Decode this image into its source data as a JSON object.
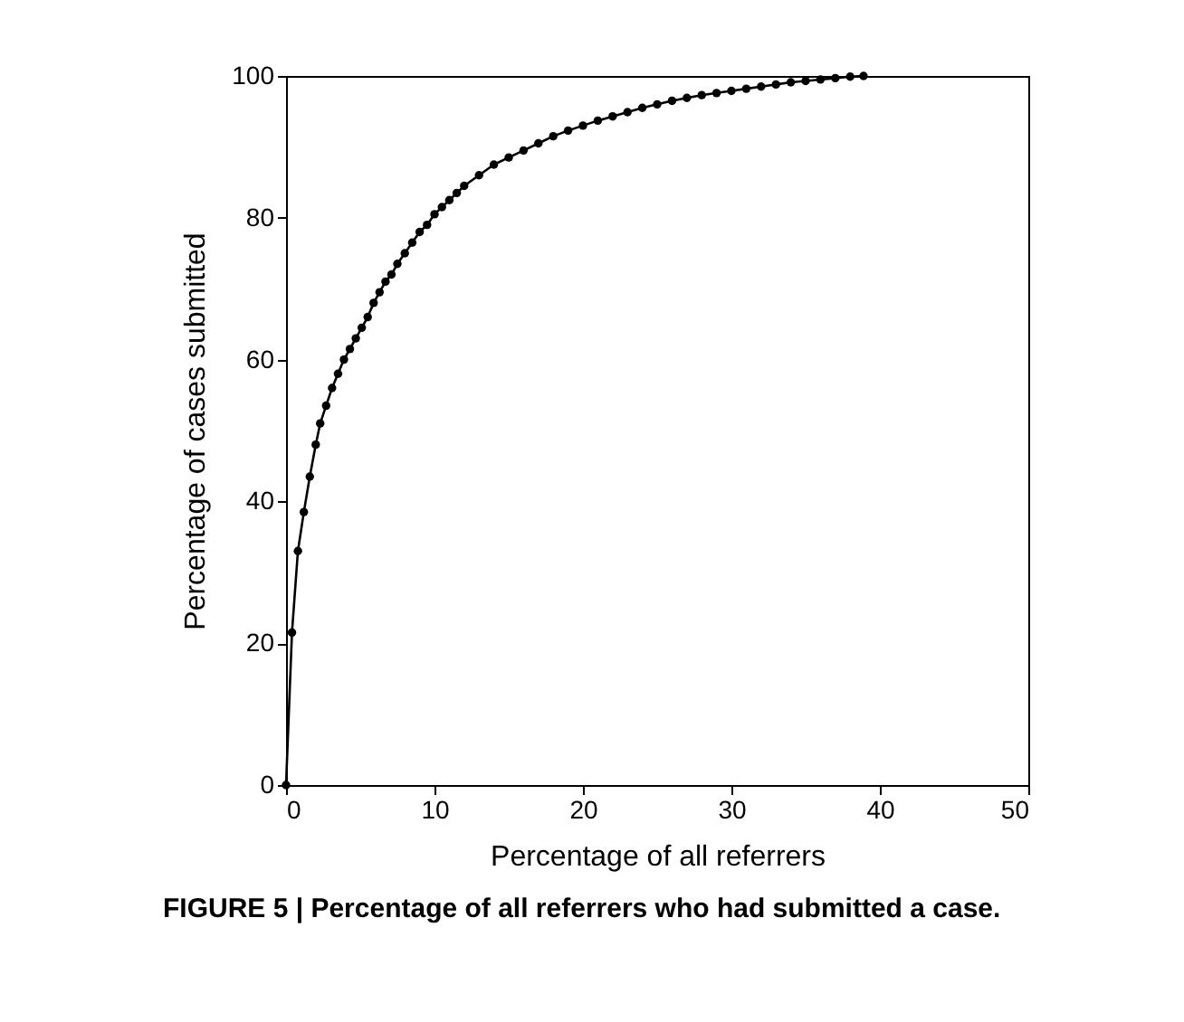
{
  "chart_data": {
    "type": "line",
    "xlabel": "Percentage of all referrers",
    "ylabel": "Percentage of cases submitted",
    "annotations": [
      "FIGURE 5 | Percentage of all referrers who had submitted a case."
    ],
    "x": [
      0,
      0.4,
      0.8,
      1.2,
      1.6,
      2.0,
      2.3,
      2.7,
      3.1,
      3.5,
      3.9,
      4.3,
      4.7,
      5.1,
      5.5,
      5.9,
      6.3,
      6.7,
      7.1,
      7.5,
      8.0,
      8.5,
      9.0,
      9.5,
      10.0,
      10.5,
      11.0,
      11.5,
      12.0,
      13.0,
      14.0,
      15.0,
      16.0,
      17.0,
      18.0,
      19.0,
      20.0,
      21.0,
      22.0,
      23.0,
      24.0,
      25.0,
      26.0,
      27.0,
      28.0,
      29.0,
      30.0,
      31.0,
      32.0,
      33.0,
      34.0,
      35.0,
      36.0,
      37.0,
      38.0,
      38.9
    ],
    "series": [
      {
        "color": "#000000",
        "values": [
          0,
          21.5,
          33,
          38.5,
          43.5,
          48,
          51,
          53.5,
          56,
          58,
          60,
          61.5,
          63,
          64.5,
          66,
          68,
          69.5,
          71,
          72,
          73.5,
          75,
          76.5,
          78,
          79,
          80.5,
          81.5,
          82.5,
          83.5,
          84.5,
          86,
          87.5,
          88.5,
          89.5,
          90.5,
          91.5,
          92.3,
          93,
          93.7,
          94.3,
          94.9,
          95.5,
          96,
          96.5,
          96.9,
          97.3,
          97.6,
          97.9,
          98.2,
          98.5,
          98.8,
          99.1,
          99.3,
          99.5,
          99.7,
          99.9,
          100
        ]
      }
    ],
    "xlim": [
      0,
      50
    ],
    "xticks": [
      0,
      10,
      20,
      30,
      40,
      50
    ],
    "ylim": [
      0,
      100
    ],
    "yticks": [
      0,
      20,
      40,
      60,
      80,
      100
    ],
    "marker": "circle",
    "line_style": "solid",
    "grid": false
  }
}
